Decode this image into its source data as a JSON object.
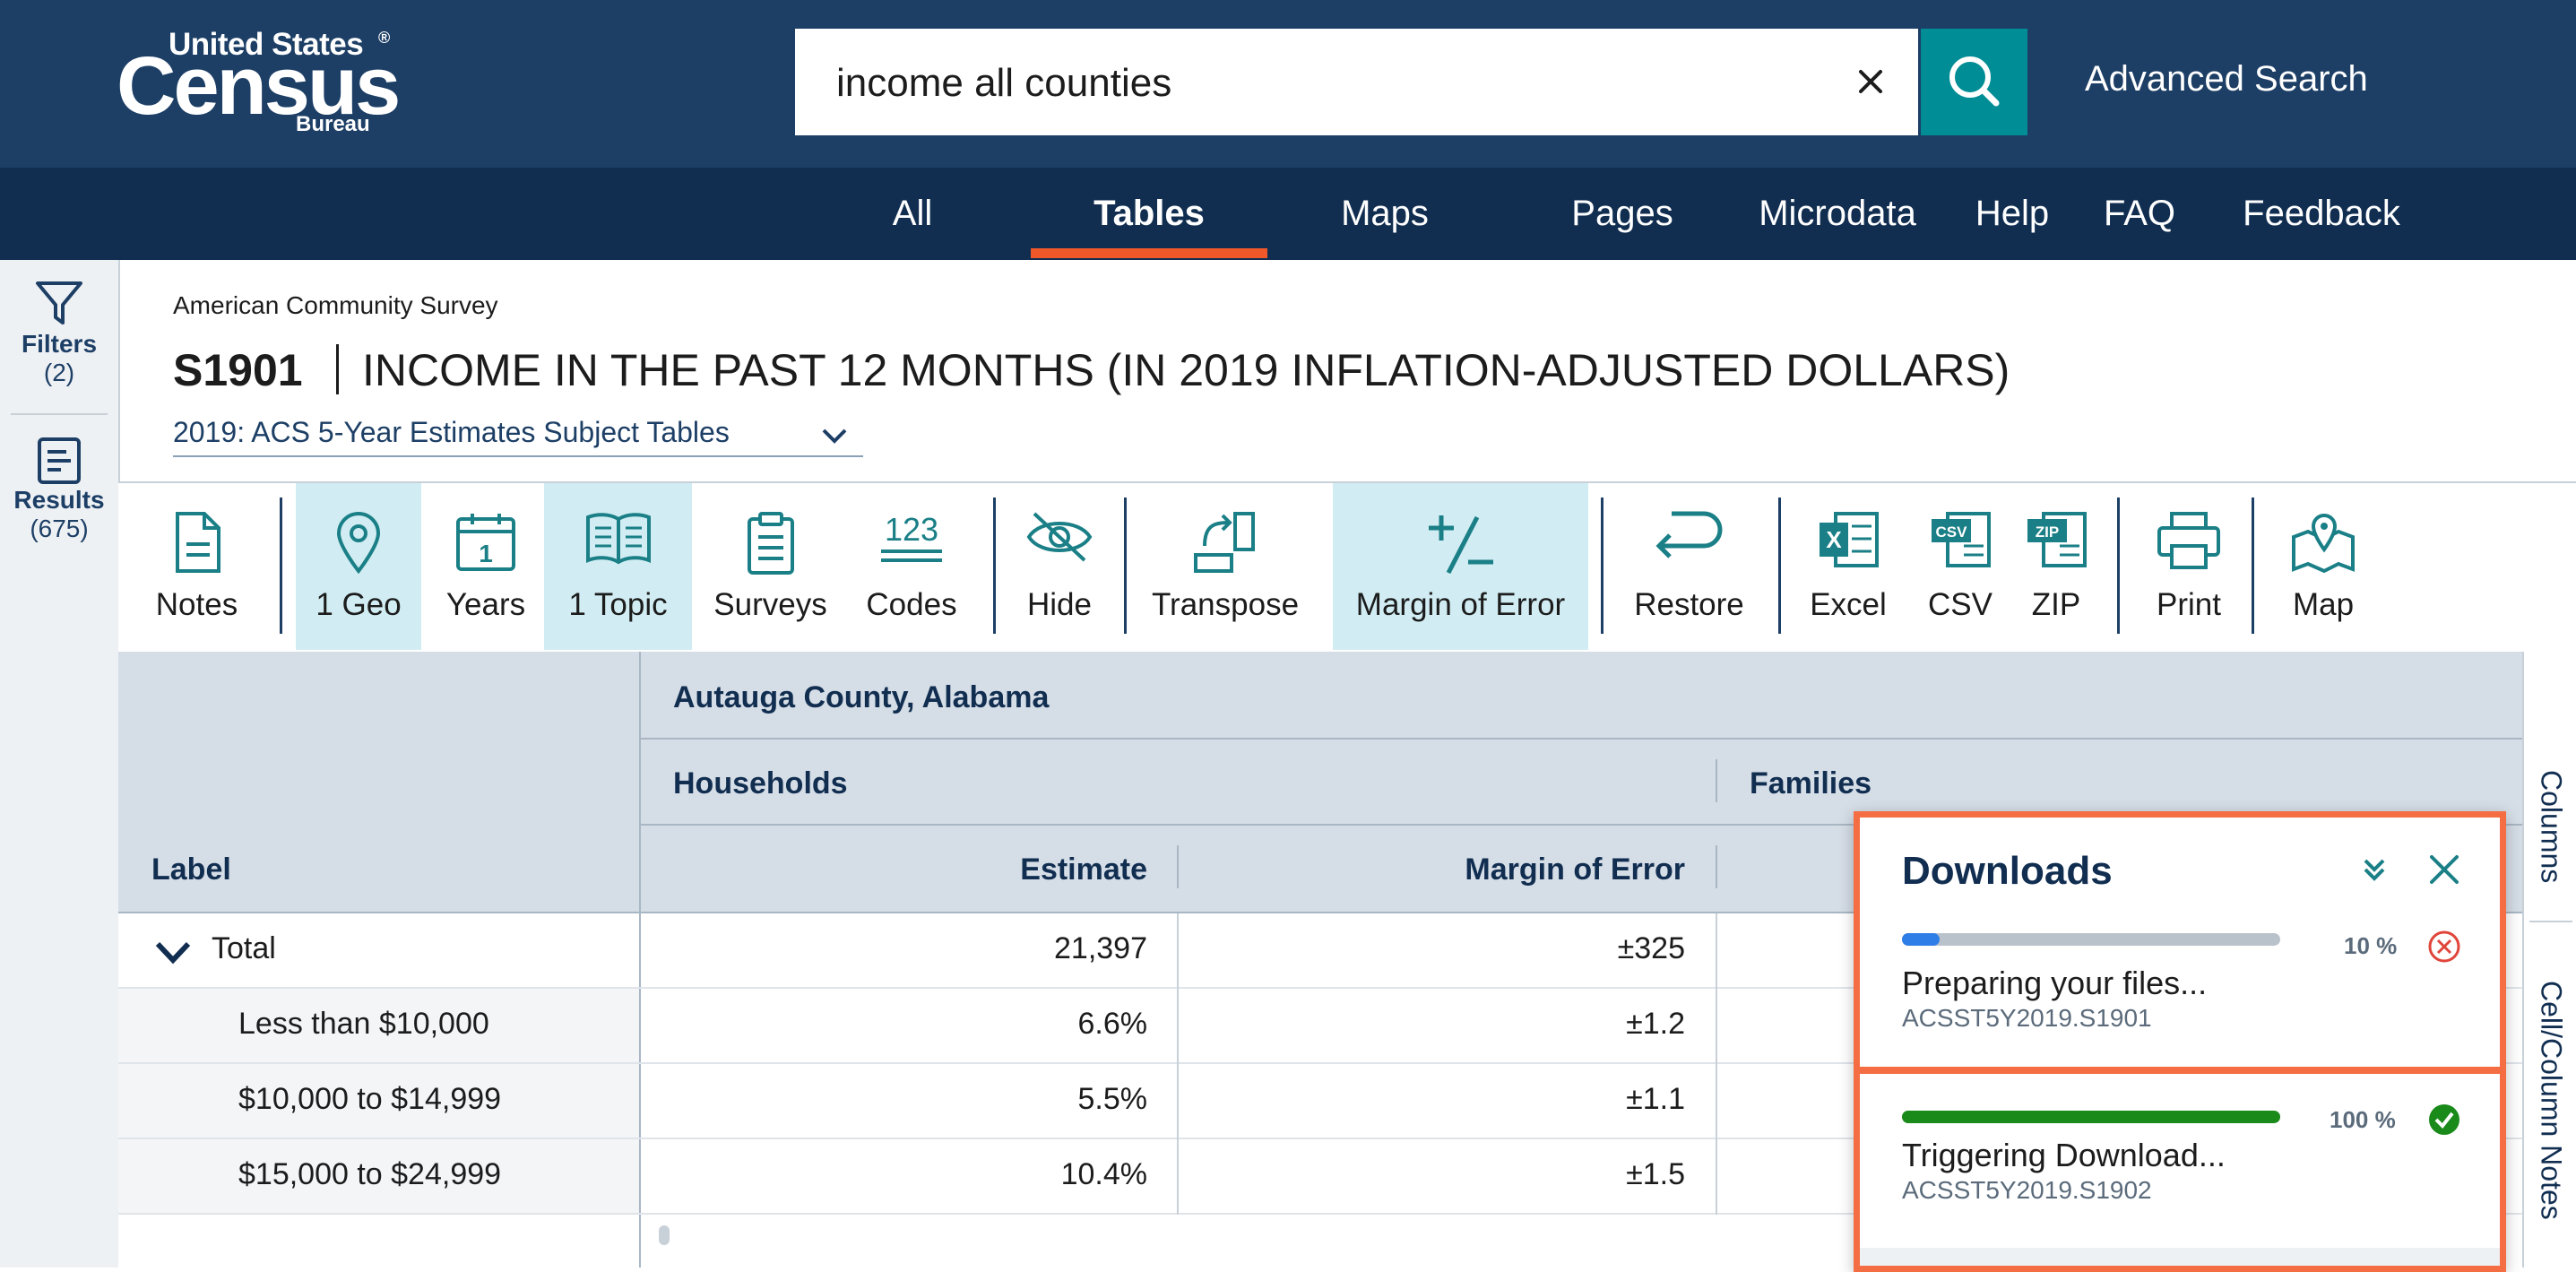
{
  "brand": {
    "top": "United States",
    "main": "Census",
    "sub": "Bureau",
    "reg": "®"
  },
  "search": {
    "value": "income all counties",
    "advanced_label": "Advanced Search"
  },
  "nav": {
    "items": [
      "All",
      "Tables",
      "Maps",
      "Pages",
      "Microdata",
      "Help",
      "FAQ",
      "Feedback"
    ],
    "active": "Tables"
  },
  "rail": {
    "filters_label": "Filters",
    "filters_count": "(2)",
    "results_label": "Results",
    "results_count": "(675)"
  },
  "table_header": {
    "survey": "American Community Survey",
    "id": "S1901",
    "title": "INCOME IN THE PAST 12 MONTHS (IN 2019 INFLATION-ADJUSTED DOLLARS)",
    "dataset": "2019: ACS 5-Year Estimates Subject Tables"
  },
  "toolbar": [
    {
      "label": "Notes",
      "icon": "notes-icon"
    },
    {
      "label": "1 Geo",
      "icon": "geo-pin-icon",
      "active": true
    },
    {
      "label": "Years",
      "icon": "calendar-icon"
    },
    {
      "label": "1 Topic",
      "icon": "book-icon",
      "active": true
    },
    {
      "label": "Surveys",
      "icon": "clipboard-icon"
    },
    {
      "label": "Codes",
      "icon": "codes-icon"
    },
    {
      "label": "Hide",
      "icon": "eye-slash-icon"
    },
    {
      "label": "Transpose",
      "icon": "transpose-icon"
    },
    {
      "label": "Margin of Error",
      "icon": "plus-minus-icon",
      "active": true
    },
    {
      "label": "Restore",
      "icon": "restore-icon"
    },
    {
      "label": "Excel",
      "icon": "excel-icon"
    },
    {
      "label": "CSV",
      "icon": "csv-icon"
    },
    {
      "label": "ZIP",
      "icon": "zip-icon"
    },
    {
      "label": "Print",
      "icon": "printer-icon"
    },
    {
      "label": "Map",
      "icon": "map-icon"
    }
  ],
  "grid": {
    "geo": "Autauga County, Alabama",
    "groups": [
      "Households",
      "Families"
    ],
    "label_col": "Label",
    "cols": [
      "Estimate",
      "Margin of Error"
    ],
    "rows": [
      {
        "label": "Total",
        "estimate": "21,397",
        "moe": "±325"
      },
      {
        "label": "Less than $10,000",
        "estimate": "6.6%",
        "moe": "±1.2"
      },
      {
        "label": "$10,000 to $14,999",
        "estimate": "5.5%",
        "moe": "±1.1"
      },
      {
        "label": "$15,000 to $24,999",
        "estimate": "10.4%",
        "moe": "±1.5"
      }
    ]
  },
  "side_tabs": [
    "Columns",
    "Cell/Column Notes"
  ],
  "downloads": {
    "title": "Downloads",
    "items": [
      {
        "pct": 10,
        "pct_label": "10 %",
        "status": "Preparing your files...",
        "file": "ACSST5Y2019.S1901",
        "bar_color": "#2f7ee8"
      },
      {
        "pct": 100,
        "pct_label": "100 %",
        "status": "Triggering Download...",
        "file": "ACSST5Y2019.S1902",
        "bar_color": "#1a8a1a"
      }
    ]
  },
  "colors": {
    "header": "#1d3f66",
    "nav": "#112e51",
    "accent": "#f0582a",
    "teal": "#008d96",
    "active_tool": "#d1edf3"
  }
}
